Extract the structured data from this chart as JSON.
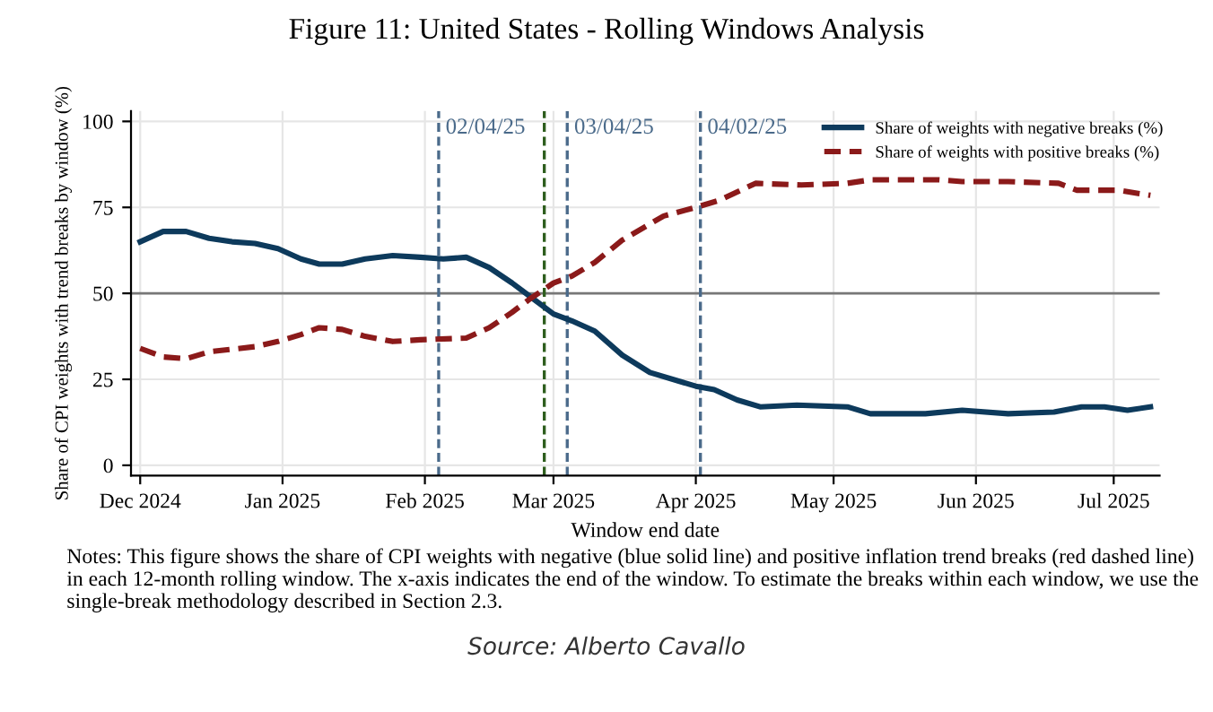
{
  "chart_data": {
    "type": "line",
    "title": "Figure 11: United States - Rolling Windows Analysis",
    "xlabel": "Window end date",
    "ylabel": "Share of CPI weights with trend breaks by window (%)",
    "xlim": [
      "2024-11-29",
      "2025-07-11"
    ],
    "xticks": [
      {
        "value": "2024-12-01",
        "label": "Dec 2024"
      },
      {
        "value": "2025-01-01",
        "label": "Jan 2025"
      },
      {
        "value": "2025-02-01",
        "label": "Feb 2025"
      },
      {
        "value": "2025-03-01",
        "label": "Mar 2025"
      },
      {
        "value": "2025-04-01",
        "label": "Apr 2025"
      },
      {
        "value": "2025-05-01",
        "label": "May 2025"
      },
      {
        "value": "2025-06-01",
        "label": "Jun 2025"
      },
      {
        "value": "2025-07-01",
        "label": "Jul 2025"
      }
    ],
    "ylim": [
      -3,
      103
    ],
    "yticks": [
      0,
      25,
      50,
      75,
      100
    ],
    "grid": true,
    "legend": "top right",
    "series": [
      {
        "name": "Share of weights with negative breaks (%)",
        "color": "#0d3a5c",
        "line_style": "solid",
        "x": [
          "2024-12-01",
          "2024-12-06",
          "2024-12-11",
          "2024-12-16",
          "2024-12-21",
          "2024-12-26",
          "2024-12-31",
          "2025-01-05",
          "2025-01-09",
          "2025-01-14",
          "2025-01-19",
          "2025-01-25",
          "2025-01-31",
          "2025-02-05",
          "2025-02-10",
          "2025-02-15",
          "2025-02-20",
          "2025-02-24",
          "2025-03-01",
          "2025-03-05",
          "2025-03-10",
          "2025-03-16",
          "2025-03-22",
          "2025-04-01",
          "2025-04-05",
          "2025-04-10",
          "2025-04-15",
          "2025-04-23",
          "2025-05-04",
          "2025-05-09",
          "2025-05-21",
          "2025-05-29",
          "2025-06-08",
          "2025-06-18",
          "2025-06-24",
          "2025-06-29",
          "2025-07-04",
          "2025-07-09"
        ],
        "values": [
          65,
          68,
          68,
          66,
          65,
          64.5,
          63,
          60,
          58.5,
          58.5,
          60,
          61,
          60.5,
          60,
          60.5,
          57.5,
          53,
          49,
          44,
          42,
          39,
          32,
          27,
          23,
          22,
          19,
          17,
          17.5,
          17,
          15,
          15,
          16,
          15,
          15.5,
          17,
          17,
          16,
          17
        ]
      },
      {
        "name": "Share of weights with positive breaks (%)",
        "color": "#8b1a1a",
        "line_style": "dashed",
        "x": [
          "2024-12-01",
          "2024-12-06",
          "2024-12-11",
          "2024-12-16",
          "2024-12-26",
          "2024-12-31",
          "2025-01-05",
          "2025-01-09",
          "2025-01-14",
          "2025-01-19",
          "2025-01-25",
          "2025-01-31",
          "2025-02-10",
          "2025-02-15",
          "2025-02-20",
          "2025-02-24",
          "2025-03-01",
          "2025-03-05",
          "2025-03-10",
          "2025-03-16",
          "2025-03-25",
          "2025-04-01",
          "2025-04-06",
          "2025-04-14",
          "2025-04-24",
          "2025-05-04",
          "2025-05-09",
          "2025-05-24",
          "2025-05-29",
          "2025-06-08",
          "2025-06-19",
          "2025-06-23",
          "2025-07-02",
          "2025-07-09"
        ],
        "values": [
          34,
          31.5,
          31,
          33,
          34.5,
          36,
          38,
          40,
          39.5,
          37.5,
          36,
          36.5,
          37,
          40,
          44.5,
          48.5,
          53,
          55,
          59,
          65.5,
          72.5,
          75,
          77,
          82,
          81.5,
          82,
          83,
          83,
          82.5,
          82.5,
          82,
          80,
          80,
          78.5
        ]
      }
    ],
    "ref_lines": [
      {
        "axis": "y",
        "value": 50,
        "color": "#777777",
        "line_style": "solid"
      },
      {
        "axis": "x",
        "value": "2025-02-04",
        "label": "02/04/25",
        "color": "#4a6a8a",
        "line_style": "dashed"
      },
      {
        "axis": "x",
        "value": "2025-02-27",
        "color": "#2e5e1e",
        "line_style": "dashed"
      },
      {
        "axis": "x",
        "value": "2025-03-04",
        "label": "03/04/25",
        "color": "#4a6a8a",
        "line_style": "dashed"
      },
      {
        "axis": "x",
        "value": "2025-04-02",
        "label": "04/02/25",
        "color": "#4a6a8a",
        "line_style": "dashed"
      }
    ],
    "annotations": [
      "Notes: This figure shows the share of CPI weights with negative (blue solid line) and positive inflation trend breaks (red dashed line) in each 12-month rolling window. The x-axis indicates the end of the window. To estimate the breaks within each window, we use the single-break methodology described in Section 2.3.",
      "Source: Alberto Cavallo"
    ]
  }
}
